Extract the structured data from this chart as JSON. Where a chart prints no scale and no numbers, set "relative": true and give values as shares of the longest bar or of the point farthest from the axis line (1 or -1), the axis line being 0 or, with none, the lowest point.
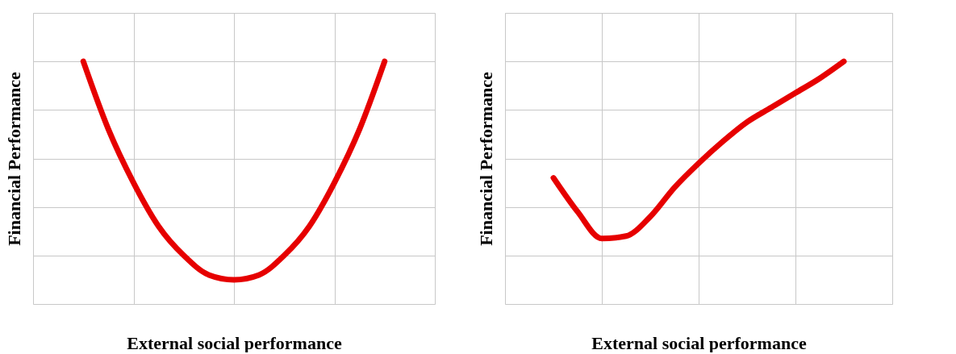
{
  "chart_data": [
    {
      "type": "line",
      "xlabel": "External social performance",
      "ylabel": "Financial Performance",
      "relative": true,
      "grid": true,
      "tick_labels": false,
      "marker": "none",
      "line_style": "solid",
      "categories": [
        null,
        null,
        null,
        null,
        null,
        null,
        null,
        null,
        null,
        null,
        null,
        null,
        null,
        null,
        null,
        null,
        null
      ],
      "series": [
        {
          "color": "#e60000",
          "values": [
            null,
            null,
            1.0,
            0.72,
            0.5,
            0.32,
            0.2,
            0.12,
            0.1,
            0.12,
            0.2,
            0.32,
            0.5,
            0.72,
            1.0,
            null,
            null
          ]
        }
      ]
    },
    {
      "type": "line",
      "xlabel": "External social performance",
      "ylabel": "Financial Performance",
      "relative": true,
      "grid": true,
      "tick_labels": false,
      "marker": "none",
      "line_style": "solid",
      "categories": [
        null,
        null,
        null,
        null,
        null,
        null,
        null,
        null,
        null,
        null,
        null,
        null,
        null,
        null,
        null,
        null,
        null
      ],
      "series": [
        {
          "color": "#e60000",
          "values": [
            null,
            null,
            0.52,
            0.38,
            0.27,
            0.28,
            0.36,
            0.48,
            0.58,
            0.67,
            0.75,
            0.81,
            0.87,
            0.93,
            1.0,
            null,
            null
          ]
        }
      ]
    }
  ]
}
